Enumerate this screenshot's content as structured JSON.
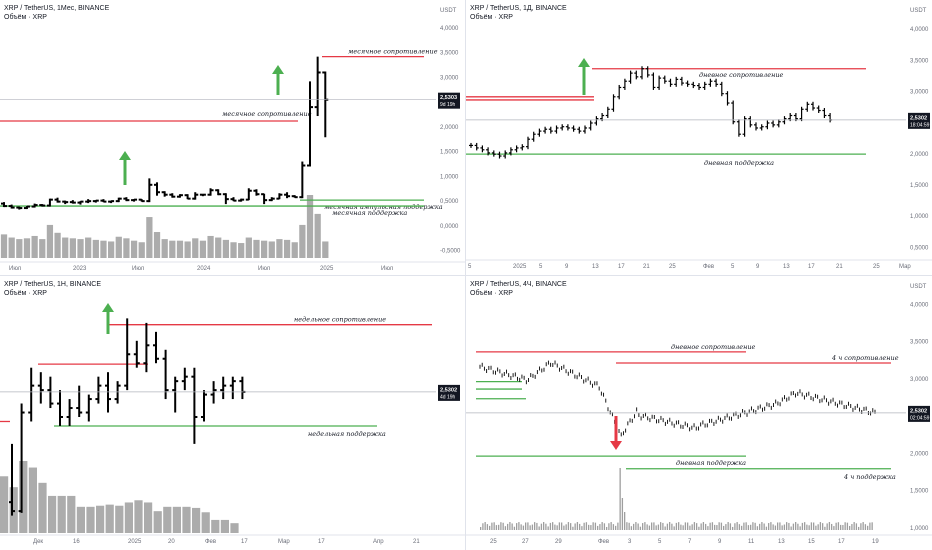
{
  "colors": {
    "resistance": "#e53945",
    "support": "#4caf50",
    "arrow_up": "#4caf50",
    "arrow_down": "#e53945",
    "price_box": "#131722",
    "volume": "#9e9e9e",
    "volume_spike": "#9e9e9e",
    "candle": "#000000",
    "grid": "#e0e3eb",
    "axis_text": "#6a6d78"
  },
  "chart_data": [
    {
      "type": "ohlc",
      "title": "XRP / TetherUS, 1Мес, BINANCE",
      "subtitle": "Объём · XRP",
      "price_tag": {
        "value": "2,5303",
        "countdown": "9d 19h"
      },
      "y_ticks": [
        "USDT",
        "4,0000",
        "3,5000",
        "3,0000",
        "2,5000",
        "2,0000",
        "1,5000",
        "1,0000",
        "0,5000",
        "0,0000",
        "-0,5000"
      ],
      "x_ticks": [
        "Июл",
        "2023",
        "Июл",
        "2024",
        "Июл",
        "2025",
        "Июл"
      ],
      "ylim": [
        -0.75,
        4.1
      ],
      "levels": [
        {
          "label": "месячное сопротивление",
          "price": 3.4,
          "color": "resistance"
        },
        {
          "label": "месячное сопротивление",
          "price": 2.1,
          "color": "resistance"
        },
        {
          "label": "месячная импульсная поддержка",
          "price": 0.5,
          "color": "support"
        },
        {
          "label": "месячная поддержка",
          "price": 0.38,
          "color": "support"
        }
      ],
      "arrows": [
        "up",
        "up"
      ],
      "ohlc": [
        [
          0.43,
          0.46,
          0.36,
          0.38
        ],
        [
          0.38,
          0.41,
          0.33,
          0.35
        ],
        [
          0.35,
          0.37,
          0.31,
          0.34
        ],
        [
          0.34,
          0.38,
          0.32,
          0.37
        ],
        [
          0.37,
          0.43,
          0.35,
          0.4
        ],
        [
          0.4,
          0.42,
          0.37,
          0.39
        ],
        [
          0.39,
          0.53,
          0.37,
          0.51
        ],
        [
          0.51,
          0.55,
          0.45,
          0.47
        ],
        [
          0.47,
          0.49,
          0.42,
          0.46
        ],
        [
          0.46,
          0.5,
          0.43,
          0.45
        ],
        [
          0.45,
          0.48,
          0.41,
          0.47
        ],
        [
          0.47,
          0.52,
          0.44,
          0.48
        ],
        [
          0.48,
          0.5,
          0.45,
          0.49
        ],
        [
          0.49,
          0.52,
          0.46,
          0.47
        ],
        [
          0.47,
          0.49,
          0.44,
          0.48
        ],
        [
          0.48,
          0.55,
          0.46,
          0.53
        ],
        [
          0.53,
          0.56,
          0.48,
          0.5
        ],
        [
          0.5,
          0.52,
          0.47,
          0.51
        ],
        [
          0.51,
          0.52,
          0.47,
          0.48
        ],
        [
          0.48,
          0.94,
          0.46,
          0.81
        ],
        [
          0.81,
          0.86,
          0.59,
          0.66
        ],
        [
          0.66,
          0.68,
          0.57,
          0.61
        ],
        [
          0.61,
          0.64,
          0.55,
          0.57
        ],
        [
          0.57,
          0.62,
          0.55,
          0.6
        ],
        [
          0.6,
          0.62,
          0.52,
          0.53
        ],
        [
          0.53,
          0.66,
          0.51,
          0.61
        ],
        [
          0.61,
          0.62,
          0.58,
          0.61
        ],
        [
          0.61,
          0.74,
          0.59,
          0.7
        ],
        [
          0.7,
          0.72,
          0.6,
          0.62
        ],
        [
          0.62,
          0.64,
          0.42,
          0.52
        ],
        [
          0.52,
          0.56,
          0.48,
          0.49
        ],
        [
          0.49,
          0.53,
          0.47,
          0.51
        ],
        [
          0.51,
          0.74,
          0.5,
          0.69
        ],
        [
          0.69,
          0.72,
          0.59,
          0.62
        ],
        [
          0.62,
          0.63,
          0.42,
          0.5
        ],
        [
          0.5,
          0.56,
          0.48,
          0.53
        ],
        [
          0.53,
          0.64,
          0.52,
          0.61
        ],
        [
          0.61,
          0.66,
          0.54,
          0.58
        ],
        [
          0.58,
          0.6,
          0.55,
          0.56
        ],
        [
          0.56,
          1.28,
          0.54,
          1.2
        ],
        [
          1.2,
          2.9,
          1.18,
          2.38
        ],
        [
          2.38,
          3.4,
          2.2,
          3.08
        ],
        [
          3.08,
          3.1,
          1.77,
          2.53
        ]
      ],
      "volume": [
        300,
        260,
        240,
        250,
        280,
        240,
        420,
        320,
        260,
        250,
        240,
        260,
        230,
        220,
        210,
        270,
        250,
        220,
        200,
        520,
        330,
        240,
        220,
        220,
        210,
        250,
        220,
        280,
        260,
        230,
        200,
        190,
        260,
        230,
        220,
        210,
        240,
        230,
        200,
        420,
        800,
        560,
        210
      ]
    },
    {
      "type": "ohlc",
      "title": "XRP / TetherUS, 1Д, BINANCE",
      "subtitle": "Объём · XRP",
      "price_tag": {
        "value": "2,5302",
        "countdown": "18:04:59"
      },
      "y_ticks": [
        "USDT",
        "4,0000",
        "3,5000",
        "3,0000",
        "2,5000",
        "2,0000",
        "1,5000",
        "1,0000",
        "0,5000"
      ],
      "x_ticks": [
        "5",
        "2025",
        "5",
        "9",
        "13",
        "17",
        "21",
        "25",
        "Фев",
        "5",
        "9",
        "13",
        "17",
        "21",
        "25",
        "Мар"
      ],
      "ylim": [
        0.25,
        4.1
      ],
      "levels": [
        {
          "label": "дневное сопротивление",
          "price": 3.35,
          "color": "resistance"
        },
        {
          "label": "",
          "price": 2.9,
          "color": "resistance"
        },
        {
          "label": "",
          "price": 2.85,
          "color": "resistance"
        },
        {
          "label": "дневная поддержка",
          "price": 1.98,
          "color": "support"
        }
      ],
      "arrows": [
        "up"
      ],
      "close": [
        2.12,
        2.08,
        2.05,
        2.0,
        1.98,
        1.95,
        2.0,
        2.05,
        2.08,
        2.1,
        2.22,
        2.3,
        2.35,
        2.38,
        2.35,
        2.4,
        2.42,
        2.4,
        2.38,
        2.35,
        2.4,
        2.48,
        2.55,
        2.6,
        2.7,
        2.9,
        3.05,
        3.15,
        3.28,
        3.22,
        3.35,
        3.25,
        3.05,
        3.2,
        3.15,
        3.1,
        3.18,
        3.12,
        3.1,
        3.08,
        3.05,
        3.1,
        3.15,
        3.1,
        2.95,
        2.8,
        2.5,
        2.3,
        2.55,
        2.45,
        2.4,
        2.42,
        2.48,
        2.45,
        2.5,
        2.55,
        2.6,
        2.55,
        2.7,
        2.78,
        2.72,
        2.68,
        2.6,
        2.53
      ]
    },
    {
      "type": "ohlc",
      "title": "XRP / TetherUS, 1Н, BINANCE",
      "subtitle": "Объём · XRP",
      "price_tag": {
        "value": "2,5302",
        "countdown": "4d 19h"
      },
      "x_ticks": [
        "Дек",
        "16",
        "2025",
        "20",
        "Фев",
        "17",
        "Мар",
        "17",
        "Апр",
        "21"
      ],
      "ylim": [
        0.9,
        3.6
      ],
      "levels": [
        {
          "label": "недельное сопротивление",
          "price": 3.28,
          "color": "resistance"
        },
        {
          "label": "",
          "price": 2.84,
          "color": "resistance"
        },
        {
          "label": "недельная поддержка",
          "price": 2.15,
          "color": "support"
        },
        {
          "label": "",
          "price": 2.2,
          "color": "resistance"
        }
      ],
      "arrows": [
        "up"
      ],
      "ohlc": [
        [
          1.3,
          1.95,
          1.15,
          1.2
        ],
        [
          1.2,
          2.4,
          1.18,
          2.3
        ],
        [
          2.3,
          2.8,
          2.2,
          2.6
        ],
        [
          2.6,
          2.75,
          2.4,
          2.55
        ],
        [
          2.55,
          2.7,
          2.35,
          2.4
        ],
        [
          2.4,
          2.55,
          2.15,
          2.25
        ],
        [
          2.25,
          2.45,
          2.15,
          2.35
        ],
        [
          2.35,
          2.6,
          2.25,
          2.3
        ],
        [
          2.3,
          2.5,
          2.2,
          2.45
        ],
        [
          2.45,
          2.7,
          2.4,
          2.6
        ],
        [
          2.6,
          2.75,
          2.3,
          2.45
        ],
        [
          2.45,
          2.65,
          2.4,
          2.6
        ],
        [
          2.6,
          3.35,
          2.55,
          2.95
        ],
        [
          2.95,
          3.1,
          2.8,
          2.85
        ],
        [
          2.85,
          3.3,
          2.75,
          3.05
        ],
        [
          3.05,
          3.2,
          2.85,
          2.9
        ],
        [
          2.9,
          3.0,
          2.45,
          2.55
        ],
        [
          2.55,
          2.7,
          2.3,
          2.65
        ],
        [
          2.65,
          2.8,
          2.55,
          2.7
        ],
        [
          2.7,
          2.8,
          1.95,
          2.25
        ],
        [
          2.25,
          2.55,
          2.2,
          2.5
        ],
        [
          2.5,
          2.65,
          2.4,
          2.55
        ],
        [
          2.55,
          2.7,
          2.45,
          2.6
        ],
        [
          2.6,
          2.7,
          2.45,
          2.65
        ],
        [
          2.65,
          2.7,
          2.45,
          2.53
        ]
      ],
      "volume": [
        260,
        210,
        330,
        300,
        230,
        170,
        170,
        170,
        120,
        120,
        125,
        130,
        125,
        140,
        150,
        140,
        100,
        120,
        120,
        120,
        115,
        95,
        60,
        60,
        45
      ]
    },
    {
      "type": "ohlc",
      "title": "XRP / TetherUS, 4Ч, BINANCE",
      "subtitle": "Объём · XRP",
      "price_tag": {
        "value": "2,5302",
        "countdown": "02:04:59"
      },
      "y_ticks": [
        "USDT",
        "4,0000",
        "3,5000",
        "3,0000",
        "2,5000",
        "2,0000",
        "1,5000",
        "1,0000"
      ],
      "x_ticks": [
        "25",
        "27",
        "29",
        "Фев",
        "3",
        "5",
        "7",
        "9",
        "11",
        "13",
        "15",
        "17",
        "19"
      ],
      "ylim": [
        0.85,
        4.1
      ],
      "levels": [
        {
          "label": "дневное сопротивление",
          "price": 3.35,
          "color": "resistance"
        },
        {
          "label": "4 ч сопротивление",
          "price": 3.2,
          "color": "resistance"
        },
        {
          "label": "",
          "price": 2.95,
          "color": "support"
        },
        {
          "label": "",
          "price": 2.85,
          "color": "support"
        },
        {
          "label": "",
          "price": 2.72,
          "color": "support"
        },
        {
          "label": "дневная поддержка",
          "price": 1.95,
          "color": "support"
        },
        {
          "label": "4 ч поддержка",
          "price": 1.78,
          "color": "support"
        }
      ],
      "arrows": [
        "down"
      ]
    }
  ]
}
